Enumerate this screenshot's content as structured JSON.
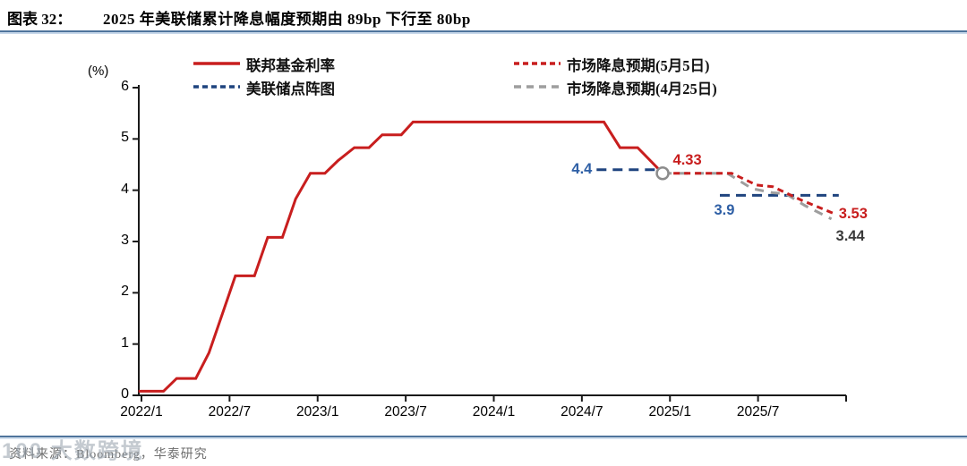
{
  "header": {
    "figure_label": "图表 32：",
    "title": "2025 年美联储累计降息幅度预期由 89bp 下行至 80bp"
  },
  "colors": {
    "red": "#C81E1E",
    "blue_line": "#1F447F",
    "blue_label": "#2E5FA5",
    "gray": "#9E9E9E",
    "dark_label": "#3A3A3A",
    "axis": "#1A1A1A",
    "divider": "#4F749C"
  },
  "legend": {
    "items": [
      {
        "label": "联邦基金利率",
        "series": 0
      },
      {
        "label": "美联储点阵图",
        "series": 1
      },
      {
        "label": "市场降息预期(5月5日)",
        "series": 2
      },
      {
        "label": "市场降息预期(4月25日)",
        "series": 3
      }
    ]
  },
  "chart_data": {
    "type": "line",
    "title": "2025 年美联储累计降息幅度预期由 89bp 下行至 80bp",
    "xlabel": "",
    "ylabel": "(%)",
    "ylim": [
      0,
      6
    ],
    "xlim_months_from_2022_1": [
      0,
      48
    ],
    "grid": false,
    "legend_position": "top",
    "y_ticks": [
      0,
      1,
      2,
      3,
      4,
      5,
      6
    ],
    "x_ticks": [
      {
        "m": 0,
        "label": "2022/1"
      },
      {
        "m": 6,
        "label": "2022/7"
      },
      {
        "m": 12,
        "label": "2023/1"
      },
      {
        "m": 18,
        "label": "2023/7"
      },
      {
        "m": 24,
        "label": "2024/1"
      },
      {
        "m": 30,
        "label": "2024/7"
      },
      {
        "m": 36,
        "label": "2025/1"
      },
      {
        "m": 42,
        "label": "2025/7"
      },
      {
        "m": 48,
        "label": ""
      }
    ],
    "series": [
      {
        "name": "联邦基金利率",
        "style": "solid",
        "color": "#C81E1E",
        "width": 3,
        "segments": [
          [
            [
              -0.2,
              0.08
            ],
            [
              1.5,
              0.08
            ],
            [
              2.4,
              0.33
            ],
            [
              3.7,
              0.33
            ],
            [
              4.6,
              0.83
            ],
            [
              5.5,
              1.58
            ],
            [
              6.4,
              2.33
            ],
            [
              7.7,
              2.33
            ],
            [
              8.6,
              3.08
            ],
            [
              9.6,
              3.08
            ],
            [
              10.5,
              3.83
            ],
            [
              11.5,
              4.33
            ],
            [
              12.5,
              4.33
            ],
            [
              13.4,
              4.58
            ],
            [
              14.5,
              4.83
            ],
            [
              15.5,
              4.83
            ],
            [
              16.4,
              5.08
            ],
            [
              17.7,
              5.08
            ],
            [
              18.5,
              5.33
            ],
            [
              31.5,
              5.33
            ],
            [
              32.6,
              4.83
            ],
            [
              33.8,
              4.83
            ],
            [
              35.5,
              4.33
            ]
          ]
        ]
      },
      {
        "name": "美联储点阵图",
        "style": "dashed",
        "dash": "11 7",
        "color": "#1F447F",
        "width": 3,
        "segments": [
          [
            [
              31.0,
              4.4
            ],
            [
              35.5,
              4.4
            ]
          ],
          [
            [
              39.4,
              3.9
            ],
            [
              47.5,
              3.9
            ]
          ]
        ]
      },
      {
        "name": "市场降息预期(5月5日)",
        "style": "dashed",
        "dash": "7 5",
        "color": "#C81E1E",
        "width": 3,
        "segments": [
          [
            [
              35.5,
              4.33
            ],
            [
              40.2,
              4.33
            ],
            [
              41.9,
              4.1
            ],
            [
              43.0,
              4.07
            ],
            [
              45.0,
              3.8
            ],
            [
              47.3,
              3.53
            ]
          ]
        ]
      },
      {
        "name": "市场降息预期(4月25日)",
        "style": "dashed",
        "dash": "10 8",
        "color": "#9E9E9E",
        "width": 3,
        "segments": [
          [
            [
              35.5,
              4.33
            ],
            [
              39.9,
              4.33
            ],
            [
              41.6,
              4.03
            ],
            [
              43.0,
              3.95
            ],
            [
              43.9,
              3.93
            ],
            [
              45.2,
              3.7
            ],
            [
              47.0,
              3.44
            ]
          ]
        ]
      }
    ],
    "marker": {
      "m": 35.5,
      "v": 4.33,
      "shape": "open-circle",
      "color": "#8C8C8C"
    },
    "annotations": [
      {
        "text": "4.4",
        "m": 30.7,
        "v": 4.4,
        "align": "right",
        "color": "#2E5FA5"
      },
      {
        "text": "4.33",
        "m": 36.2,
        "v": 4.57,
        "align": "left",
        "color": "#C81E1E"
      },
      {
        "text": "3.9",
        "m": 39.0,
        "v": 3.6,
        "align": "left",
        "color": "#2E5FA5"
      },
      {
        "text": "3.53",
        "m": 47.5,
        "v": 3.52,
        "align": "left",
        "color": "#C81E1E"
      },
      {
        "text": "3.44",
        "m": 47.3,
        "v": 3.09,
        "align": "left",
        "color": "#3A3A3A"
      }
    ]
  },
  "footer": {
    "source": "资料来源：Bloomberg，华泰研究",
    "watermark": "100 大数跨境"
  }
}
